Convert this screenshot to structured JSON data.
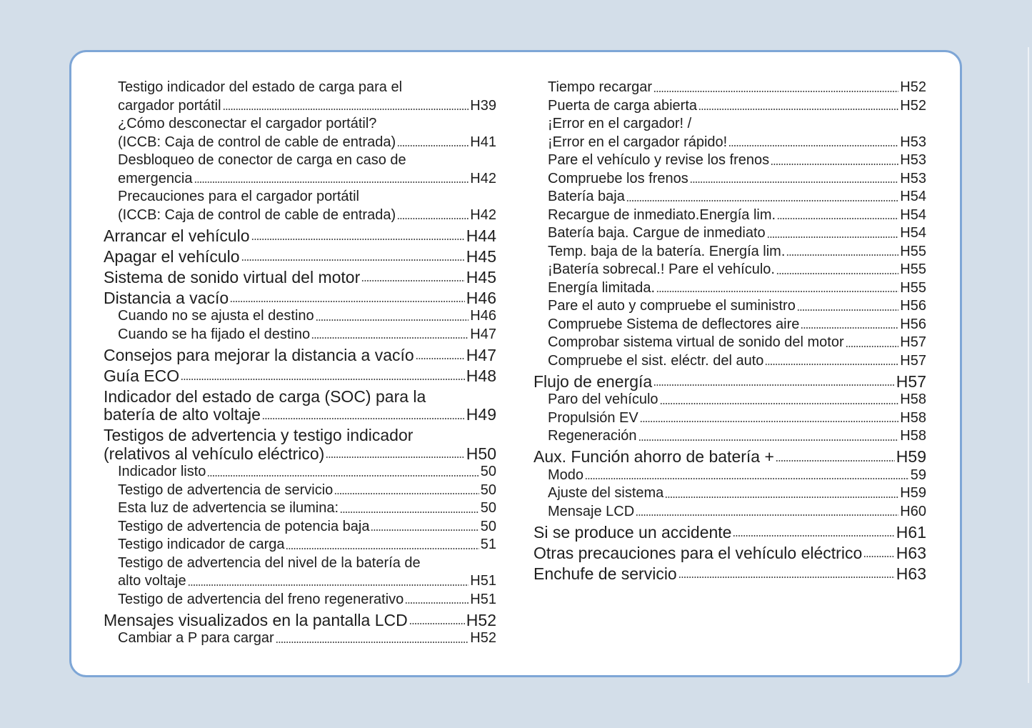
{
  "left_column": [
    {
      "level": "sub",
      "lines": [
        "Testigo indicador del estado de carga para el",
        "cargador portátil"
      ],
      "page": "H39"
    },
    {
      "level": "sub",
      "lines": [
        "¿Cómo desconectar el cargador portátil?",
        "(ICCB: Caja de control de cable de entrada)"
      ],
      "page": "H41"
    },
    {
      "level": "sub",
      "lines": [
        "Desbloqueo de conector de carga en caso de",
        "emergencia"
      ],
      "page": "H42"
    },
    {
      "level": "sub",
      "lines": [
        "Precauciones para el cargador portátil",
        "(ICCB: Caja de control de cable de entrada)"
      ],
      "page": "H42"
    },
    {
      "level": "main",
      "lines": [
        "Arrancar el vehículo"
      ],
      "page": "H44"
    },
    {
      "level": "main",
      "lines": [
        "Apagar el vehículo"
      ],
      "page": "H45"
    },
    {
      "level": "main",
      "lines": [
        "Sistema de sonido virtual del motor"
      ],
      "page": "H45"
    },
    {
      "level": "main",
      "lines": [
        "Distancia a vacío"
      ],
      "page": "H46"
    },
    {
      "level": "sub",
      "lines": [
        "Cuando no se ajusta el destino"
      ],
      "page": "H46"
    },
    {
      "level": "sub",
      "lines": [
        "Cuando se ha fijado el destino"
      ],
      "page": "H47"
    },
    {
      "level": "main",
      "lines": [
        "Consejos para mejorar la distancia a vacío"
      ],
      "page": "H47"
    },
    {
      "level": "main",
      "lines": [
        "Guía ECO"
      ],
      "page": "H48"
    },
    {
      "level": "main",
      "lines": [
        "Indicador del estado de carga (SOC) para la",
        "batería de alto voltaje"
      ],
      "page": "H49"
    },
    {
      "level": "main",
      "lines": [
        "Testigos de advertencia y testigo indicador",
        "(relativos al vehículo eléctrico)"
      ],
      "page": "H50"
    },
    {
      "level": "sub",
      "lines": [
        "Indicador listo"
      ],
      "page": "50"
    },
    {
      "level": "sub",
      "lines": [
        "Testigo de advertencia de servicio"
      ],
      "page": "50"
    },
    {
      "level": "sub",
      "lines": [
        "Esta luz de advertencia se ilumina:"
      ],
      "page": "50"
    },
    {
      "level": "sub",
      "lines": [
        "Testigo de advertencia de potencia baja"
      ],
      "page": "50"
    },
    {
      "level": "sub",
      "lines": [
        "Testigo indicador de carga"
      ],
      "page": "51"
    },
    {
      "level": "sub",
      "lines": [
        "Testigo de advertencia del nivel de la batería de",
        "alto voltaje"
      ],
      "page": "H51"
    },
    {
      "level": "sub",
      "lines": [
        "Testigo de advertencia del freno regenerativo"
      ],
      "page": "H51"
    },
    {
      "level": "main",
      "lines": [
        "Mensajes visualizados en la pantalla LCD"
      ],
      "page": "H52"
    },
    {
      "level": "sub",
      "lines": [
        "Cambiar a P para cargar"
      ],
      "page": "H52"
    }
  ],
  "right_column": [
    {
      "level": "sub",
      "lines": [
        "Tiempo recargar"
      ],
      "page": "H52"
    },
    {
      "level": "sub",
      "lines": [
        "Puerta de carga abierta"
      ],
      "page": "H52"
    },
    {
      "level": "sub",
      "lines": [
        "¡Error en el cargador! /",
        "¡Error en el cargador rápido!"
      ],
      "page": "H53"
    },
    {
      "level": "sub",
      "lines": [
        "Pare el vehículo y revise los frenos"
      ],
      "page": "H53"
    },
    {
      "level": "sub",
      "lines": [
        "Compruebe los frenos"
      ],
      "page": "H53"
    },
    {
      "level": "sub",
      "lines": [
        "Batería baja"
      ],
      "page": "H54"
    },
    {
      "level": "sub",
      "lines": [
        "Recargue de inmediato.Energía lim."
      ],
      "page": "H54"
    },
    {
      "level": "sub",
      "lines": [
        "Batería baja. Cargue de inmediato"
      ],
      "page": "H54"
    },
    {
      "level": "sub",
      "lines": [
        "Temp. baja de la batería. Energía lim."
      ],
      "page": "H55"
    },
    {
      "level": "sub",
      "lines": [
        "¡Batería sobrecal.! Pare el vehículo."
      ],
      "page": "H55"
    },
    {
      "level": "sub",
      "lines": [
        "Energía limitada."
      ],
      "page": "H55"
    },
    {
      "level": "sub",
      "lines": [
        "Pare el auto y compruebe el suministro"
      ],
      "page": "H56"
    },
    {
      "level": "sub",
      "lines": [
        "Compruebe Sistema de deflectores aire"
      ],
      "page": "H56"
    },
    {
      "level": "sub",
      "lines": [
        "Comprobar sistema virtual de sonido del motor"
      ],
      "page": "H57"
    },
    {
      "level": "sub",
      "lines": [
        "Compruebe el sist. eléctr. del auto"
      ],
      "page": "H57"
    },
    {
      "level": "main",
      "lines": [
        "Flujo de energía"
      ],
      "page": "H57"
    },
    {
      "level": "sub",
      "lines": [
        "Paro del vehículo"
      ],
      "page": "H58"
    },
    {
      "level": "sub",
      "lines": [
        "Propulsión EV"
      ],
      "page": "H58"
    },
    {
      "level": "sub",
      "lines": [
        "Regeneración"
      ],
      "page": "H58"
    },
    {
      "level": "main",
      "lines": [
        "Aux. Función ahorro de batería +"
      ],
      "page": "H59"
    },
    {
      "level": "sub",
      "lines": [
        "Modo"
      ],
      "page": "59"
    },
    {
      "level": "sub",
      "lines": [
        "Ajuste del sistema"
      ],
      "page": "H59"
    },
    {
      "level": "sub",
      "lines": [
        "Mensaje LCD"
      ],
      "page": "H60"
    },
    {
      "level": "main",
      "lines": [
        "Si se produce un accidente"
      ],
      "page": "H61"
    },
    {
      "level": "main",
      "lines": [
        "Otras precauciones para el vehículo eléctrico"
      ],
      "page": "H63"
    },
    {
      "level": "main",
      "lines": [
        "Enchufe de servicio"
      ],
      "page": "H63"
    }
  ]
}
